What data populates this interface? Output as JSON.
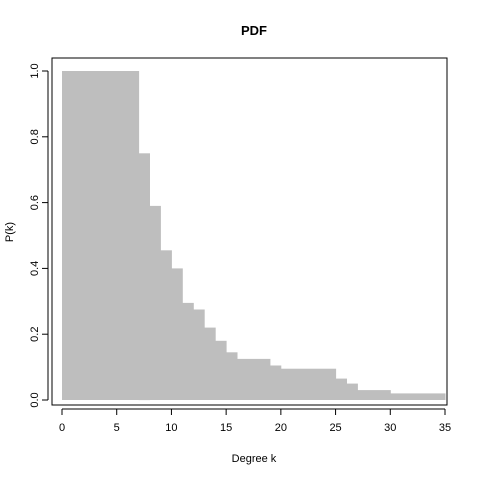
{
  "chart_data": {
    "type": "bar",
    "title": "PDF",
    "xlabel": "Degree k",
    "ylabel": "P(k)",
    "xlim": [
      0,
      35
    ],
    "ylim": [
      0,
      1.0
    ],
    "xticks": [
      0,
      5,
      10,
      15,
      20,
      25,
      30,
      35
    ],
    "xtick_labels": [
      "0",
      "5",
      "10",
      "15",
      "20",
      "25",
      "30",
      "35"
    ],
    "yticks": [
      0.0,
      0.2,
      0.4,
      0.6,
      0.8,
      1.0
    ],
    "ytick_labels": [
      "0.0",
      "0.2",
      "0.4",
      "0.6",
      "0.8",
      "1.0"
    ],
    "color": "#bebebe",
    "bins": [
      {
        "x0": 0,
        "x1": 7,
        "value": 1.0
      },
      {
        "x0": 7,
        "x1": 8,
        "value": 0.75
      },
      {
        "x0": 8,
        "x1": 9,
        "value": 0.59
      },
      {
        "x0": 9,
        "x1": 10,
        "value": 0.455
      },
      {
        "x0": 10,
        "x1": 11,
        "value": 0.4
      },
      {
        "x0": 11,
        "x1": 12,
        "value": 0.295
      },
      {
        "x0": 12,
        "x1": 13,
        "value": 0.275
      },
      {
        "x0": 13,
        "x1": 14,
        "value": 0.22
      },
      {
        "x0": 14,
        "x1": 15,
        "value": 0.18
      },
      {
        "x0": 15,
        "x1": 16,
        "value": 0.145
      },
      {
        "x0": 16,
        "x1": 19,
        "value": 0.125
      },
      {
        "x0": 19,
        "x1": 20,
        "value": 0.105
      },
      {
        "x0": 20,
        "x1": 25,
        "value": 0.095
      },
      {
        "x0": 25,
        "x1": 26,
        "value": 0.065
      },
      {
        "x0": 26,
        "x1": 27,
        "value": 0.05
      },
      {
        "x0": 27,
        "x1": 30,
        "value": 0.03
      },
      {
        "x0": 30,
        "x1": 35,
        "value": 0.02
      }
    ]
  }
}
